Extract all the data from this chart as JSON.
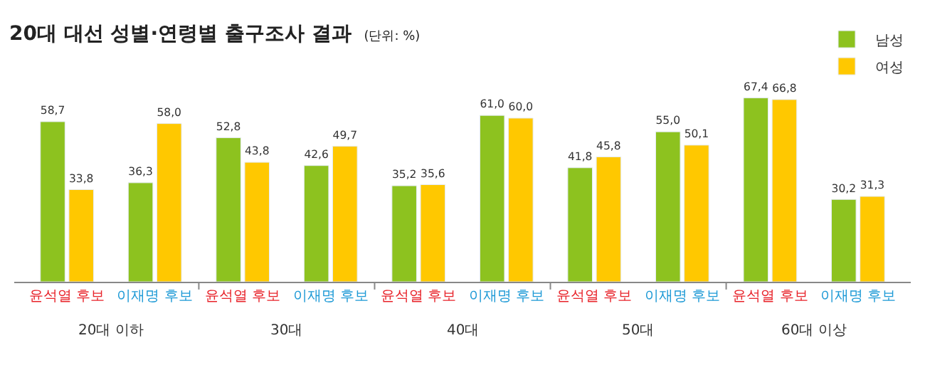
{
  "chart_data": {
    "type": "bar",
    "title": "20대 대선 성별·연령별 출구조사 결과",
    "subtitle": "(단위: %)",
    "categories": [
      "윤석열 후보",
      "이재명 후보",
      "윤석열 후보",
      "이재명 후보",
      "윤석열 후보",
      "이재명 후보",
      "윤석열 후보",
      "이재명 후보",
      "윤석열 후보",
      "이재명 후보"
    ],
    "series": [
      {
        "name": "남성",
        "color": "#8dc21f",
        "values": [
          58.7,
          36.3,
          52.8,
          42.6,
          35.2,
          61.0,
          41.8,
          55.0,
          67.4,
          30.2
        ],
        "value_labels": [
          "58,7",
          "36,3",
          "52,8",
          "42,6",
          "35,2",
          "61,0",
          "41,8",
          "55,0",
          "67,4",
          "30,2"
        ]
      },
      {
        "name": "여성",
        "color": "#ffc800",
        "values": [
          33.8,
          58.0,
          43.8,
          49.7,
          35.6,
          60.0,
          45.8,
          50.1,
          66.8,
          31.3
        ],
        "value_labels": [
          "33,8",
          "58,0",
          "43,8",
          "49,7",
          "35,6",
          "60,0",
          "45,8",
          "50,1",
          "66,8",
          "31,3"
        ]
      }
    ],
    "annotations": [
      "20대 이하",
      "30대",
      "40대",
      "50대",
      "60대 이상"
    ],
    "legend": "top right"
  }
}
